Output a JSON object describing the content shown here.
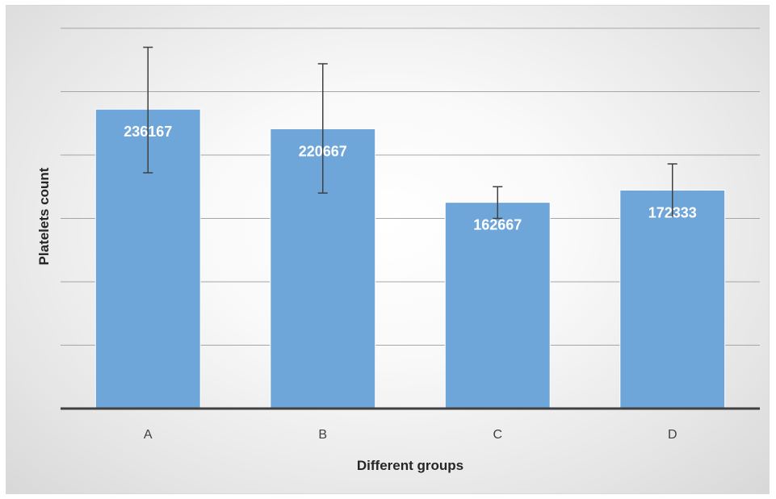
{
  "chart_data": {
    "type": "bar",
    "title": "",
    "xlabel": "Different groups",
    "ylabel": "Platelets count",
    "categories": [
      "A",
      "B",
      "C",
      "D"
    ],
    "values": [
      236167,
      220667,
      162667,
      172333
    ],
    "error_high": [
      285000,
      272000,
      175000,
      193000
    ],
    "error_low": [
      186000,
      170000,
      150000,
      152000
    ],
    "data_labels": [
      "236167",
      "220667",
      "162667",
      "172333"
    ],
    "ylim": [
      0,
      300000
    ],
    "y_gridline_step": 50000,
    "y_tick_labels_shown": false,
    "grid": true,
    "legend": "none",
    "colors": {
      "bar": "#6fa6d9",
      "bar_border": "#ffffff",
      "error_bar": "#404040",
      "gridline": "#a6a6a6",
      "baseline": "#404040"
    }
  }
}
